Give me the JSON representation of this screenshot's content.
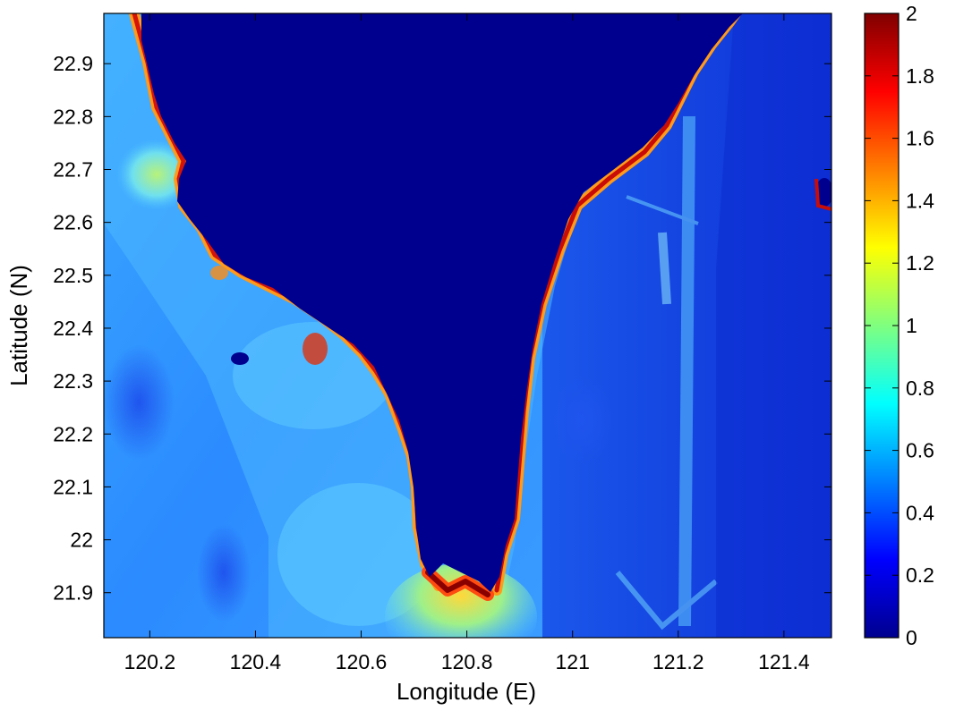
{
  "figure": {
    "xlabel": "Longitude (E)",
    "ylabel": "Latitude (N)",
    "xticks": [
      "120.2",
      "120.4",
      "120.6",
      "120.8",
      "121",
      "121.2",
      "121.4"
    ],
    "yticks": [
      "22.9",
      "22.8",
      "22.7",
      "22.6",
      "22.5",
      "22.4",
      "22.3",
      "22.2",
      "22.1",
      "22",
      "21.9"
    ],
    "colorbar_ticks": [
      "2",
      "1.8",
      "1.6",
      "1.4",
      "1.2",
      "1",
      "0.8",
      "0.6",
      "0.4",
      "0.2",
      "0"
    ]
  },
  "chart_data": {
    "type": "heatmap",
    "title": "",
    "xlabel": "Longitude (E)",
    "ylabel": "Latitude (N)",
    "xlim": [
      120.113,
      121.49
    ],
    "ylim": [
      21.815,
      22.995
    ],
    "x_ticks": [
      120.2,
      120.4,
      120.6,
      120.8,
      121.0,
      121.2,
      121.4
    ],
    "y_ticks": [
      22.9,
      22.8,
      22.7,
      22.6,
      22.5,
      22.4,
      22.3,
      22.2,
      22.1,
      22.0,
      21.9
    ],
    "colorbar": {
      "min": 0,
      "max": 2,
      "ticks": [
        0,
        0.2,
        0.4,
        0.6,
        0.8,
        1,
        1.2,
        1.4,
        1.6,
        1.8,
        2
      ],
      "colormap": "jet"
    },
    "land_value": 0,
    "grid": false,
    "description_values": {
      "open_ocean_typical": 0.35,
      "west_offshore_typical": 0.5,
      "coastal_maximum": 2
    }
  },
  "colors": {
    "land": "#00008f",
    "ocean_deep": "#0d2fd8",
    "ocean_mid": "#1e6cff",
    "ocean_light": "#3aa4ff",
    "shallow": "#6ddcf0",
    "yellow": "#ffe34a",
    "orange": "#ff8c14",
    "red": "#e0140a",
    "darkred": "#8a0000"
  }
}
